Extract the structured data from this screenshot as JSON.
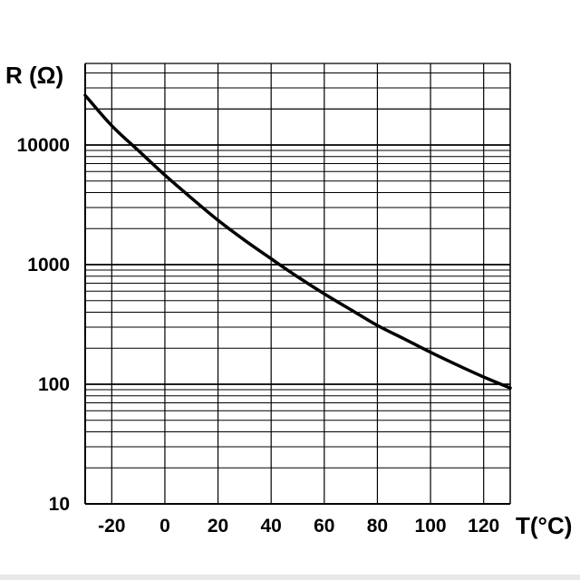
{
  "chart_data": {
    "type": "line",
    "title": "",
    "ylabel": "R (Ω)",
    "xlabel": "T(°C)",
    "xlim": [
      -30,
      130
    ],
    "ylim": [
      10,
      40000
    ],
    "y_scale": "log",
    "grid": true,
    "x_ticks": [
      -20,
      0,
      20,
      40,
      60,
      80,
      100,
      120
    ],
    "x_tick_labels": [
      "-20",
      "0",
      "20",
      "40",
      "60",
      "80",
      "100",
      "120"
    ],
    "y_ticks": [
      10,
      100,
      1000,
      10000
    ],
    "y_tick_labels": [
      "10",
      "100",
      "1000",
      "10000"
    ],
    "series": [
      {
        "x": [
          -30,
          -20,
          -10,
          0,
          10,
          20,
          30,
          40,
          50,
          60,
          70,
          80,
          90,
          100,
          110,
          120,
          130
        ],
        "y": [
          26000,
          14500,
          9000,
          5600,
          3600,
          2350,
          1600,
          1120,
          790,
          570,
          420,
          310,
          240,
          185,
          145,
          115,
          93
        ]
      }
    ],
    "colors": {
      "line": "#000000",
      "grid": "#000000"
    }
  }
}
